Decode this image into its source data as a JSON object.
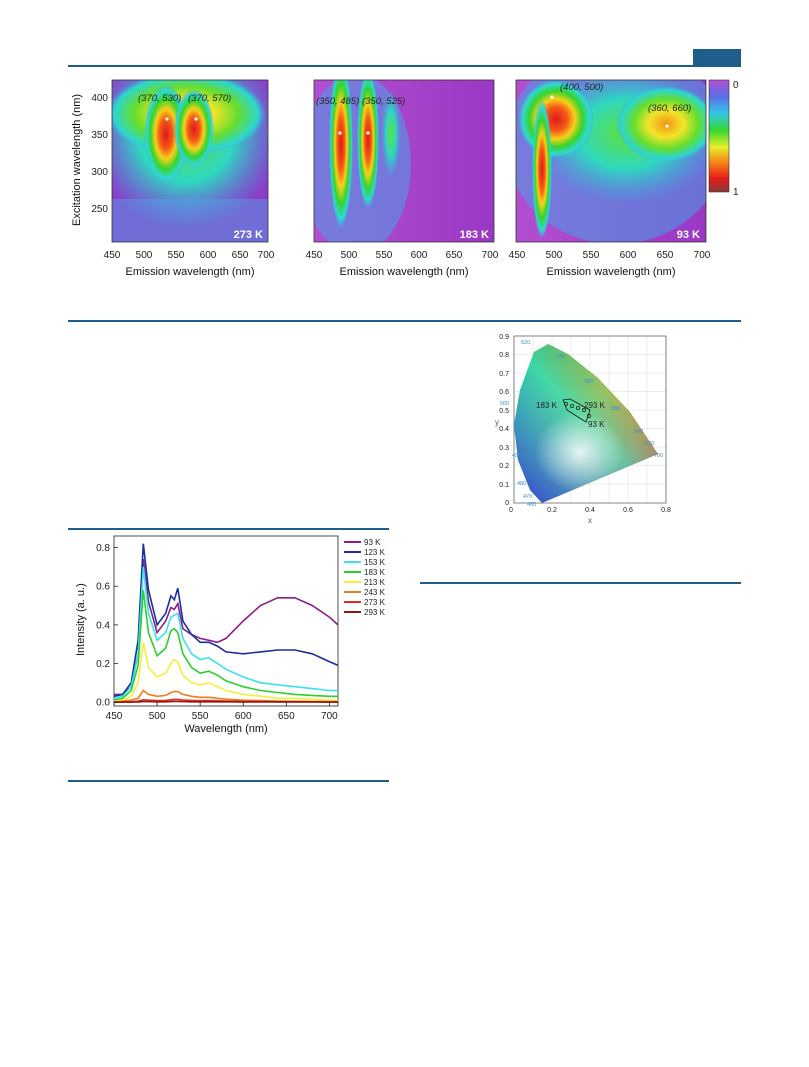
{
  "colors": {
    "rule": "#1b5f86",
    "header_tab": "#1f5e8a"
  },
  "figure_top": {
    "panels": [
      {
        "temp_label": "273 K",
        "peaks": [
          "(370, 530)",
          "(370, 570)"
        ]
      },
      {
        "temp_label": "183 K",
        "peaks": [
          "(350, 485)",
          "(350, 525)"
        ]
      },
      {
        "temp_label": "93 K",
        "peaks": [
          "(400, 500)",
          "(360, 660)"
        ]
      }
    ],
    "xlabel": "Emission wavelength (nm)",
    "ylabel": "Excitation wavelength (nm)",
    "x_ticks": [
      "450",
      "500",
      "550",
      "600",
      "650",
      "700"
    ],
    "y_ticks": [
      "400",
      "350",
      "300",
      "250"
    ],
    "colorbar": {
      "top": "0",
      "bottom": "1"
    }
  },
  "figure_cie": {
    "x_ticks": [
      "0",
      "0.2",
      "0.4",
      "0.6",
      "0.8"
    ],
    "y_ticks": [
      "0",
      "0.1",
      "0.2",
      "0.3",
      "0.4",
      "0.5",
      "0.6",
      "0.7",
      "0.8",
      "0.9"
    ],
    "xlabel": "x",
    "ylabel": "y",
    "locus_labels": [
      "520",
      "540",
      "560",
      "580",
      "600",
      "620",
      "700",
      "500",
      "490",
      "480",
      "470",
      "460"
    ],
    "annotations": [
      "183 K",
      "293 K",
      "93 K"
    ]
  },
  "chart_data": {
    "type": "line",
    "xlabel": "Wavelength (nm)",
    "ylabel": "Intensity (a. u.)",
    "xlim": [
      450,
      710
    ],
    "ylim": [
      -0.02,
      0.86
    ],
    "x_ticks": [
      "450",
      "500",
      "550",
      "600",
      "650",
      "700"
    ],
    "y_ticks": [
      "0.0",
      "0.2",
      "0.4",
      "0.6",
      "0.8"
    ],
    "legend_position": "right",
    "x": [
      450,
      460,
      470,
      478,
      484,
      490,
      500,
      510,
      516,
      520,
      524,
      530,
      540,
      550,
      560,
      570,
      580,
      600,
      620,
      640,
      660,
      680,
      700,
      710
    ],
    "series": [
      {
        "name": "93 K",
        "color": "#8b1f86",
        "values": [
          0.04,
          0.04,
          0.08,
          0.25,
          0.74,
          0.52,
          0.36,
          0.42,
          0.49,
          0.48,
          0.51,
          0.38,
          0.35,
          0.33,
          0.32,
          0.31,
          0.33,
          0.42,
          0.5,
          0.54,
          0.54,
          0.5,
          0.44,
          0.4
        ]
      },
      {
        "name": "123 K",
        "color": "#1a2ea0",
        "values": [
          0.03,
          0.04,
          0.1,
          0.32,
          0.82,
          0.58,
          0.4,
          0.46,
          0.55,
          0.53,
          0.59,
          0.42,
          0.35,
          0.31,
          0.31,
          0.29,
          0.26,
          0.25,
          0.26,
          0.27,
          0.27,
          0.25,
          0.21,
          0.19
        ]
      },
      {
        "name": "153 K",
        "color": "#36e3ec",
        "values": [
          0.02,
          0.03,
          0.08,
          0.25,
          0.7,
          0.46,
          0.32,
          0.36,
          0.44,
          0.45,
          0.46,
          0.33,
          0.25,
          0.22,
          0.23,
          0.2,
          0.17,
          0.13,
          0.1,
          0.09,
          0.08,
          0.07,
          0.06,
          0.06
        ]
      },
      {
        "name": "183 K",
        "color": "#2ccf2c",
        "values": [
          0.01,
          0.02,
          0.06,
          0.19,
          0.58,
          0.36,
          0.24,
          0.28,
          0.37,
          0.38,
          0.36,
          0.25,
          0.18,
          0.15,
          0.16,
          0.14,
          0.11,
          0.08,
          0.06,
          0.05,
          0.04,
          0.035,
          0.03,
          0.03
        ]
      },
      {
        "name": "213 K",
        "color": "#f3f03a",
        "values": [
          0.005,
          0.01,
          0.03,
          0.1,
          0.31,
          0.18,
          0.13,
          0.15,
          0.2,
          0.22,
          0.21,
          0.14,
          0.1,
          0.09,
          0.1,
          0.08,
          0.06,
          0.04,
          0.03,
          0.02,
          0.02,
          0.015,
          0.01,
          0.01
        ]
      },
      {
        "name": "243 K",
        "color": "#f07b1a",
        "values": [
          0.0,
          0.005,
          0.01,
          0.02,
          0.06,
          0.04,
          0.03,
          0.035,
          0.05,
          0.055,
          0.055,
          0.04,
          0.03,
          0.025,
          0.025,
          0.02,
          0.015,
          0.01,
          0.008,
          0.006,
          0.005,
          0.004,
          0.003,
          0.003
        ]
      },
      {
        "name": "273 K",
        "color": "#e22b1e",
        "values": [
          0.0,
          0.0,
          0.002,
          0.005,
          0.012,
          0.01,
          0.008,
          0.009,
          0.012,
          0.014,
          0.014,
          0.011,
          0.009,
          0.008,
          0.008,
          0.007,
          0.006,
          0.004,
          0.003,
          0.002,
          0.002,
          0.002,
          0.001,
          0.001
        ]
      },
      {
        "name": "293 K",
        "color": "#8a1a10",
        "values": [
          0.0,
          0.0,
          0.0,
          0.001,
          0.003,
          0.003,
          0.002,
          0.002,
          0.003,
          0.004,
          0.004,
          0.003,
          0.002,
          0.002,
          0.002,
          0.002,
          0.002,
          0.001,
          0.001,
          0.001,
          0.001,
          0.001,
          0.0,
          0.0
        ]
      }
    ]
  }
}
